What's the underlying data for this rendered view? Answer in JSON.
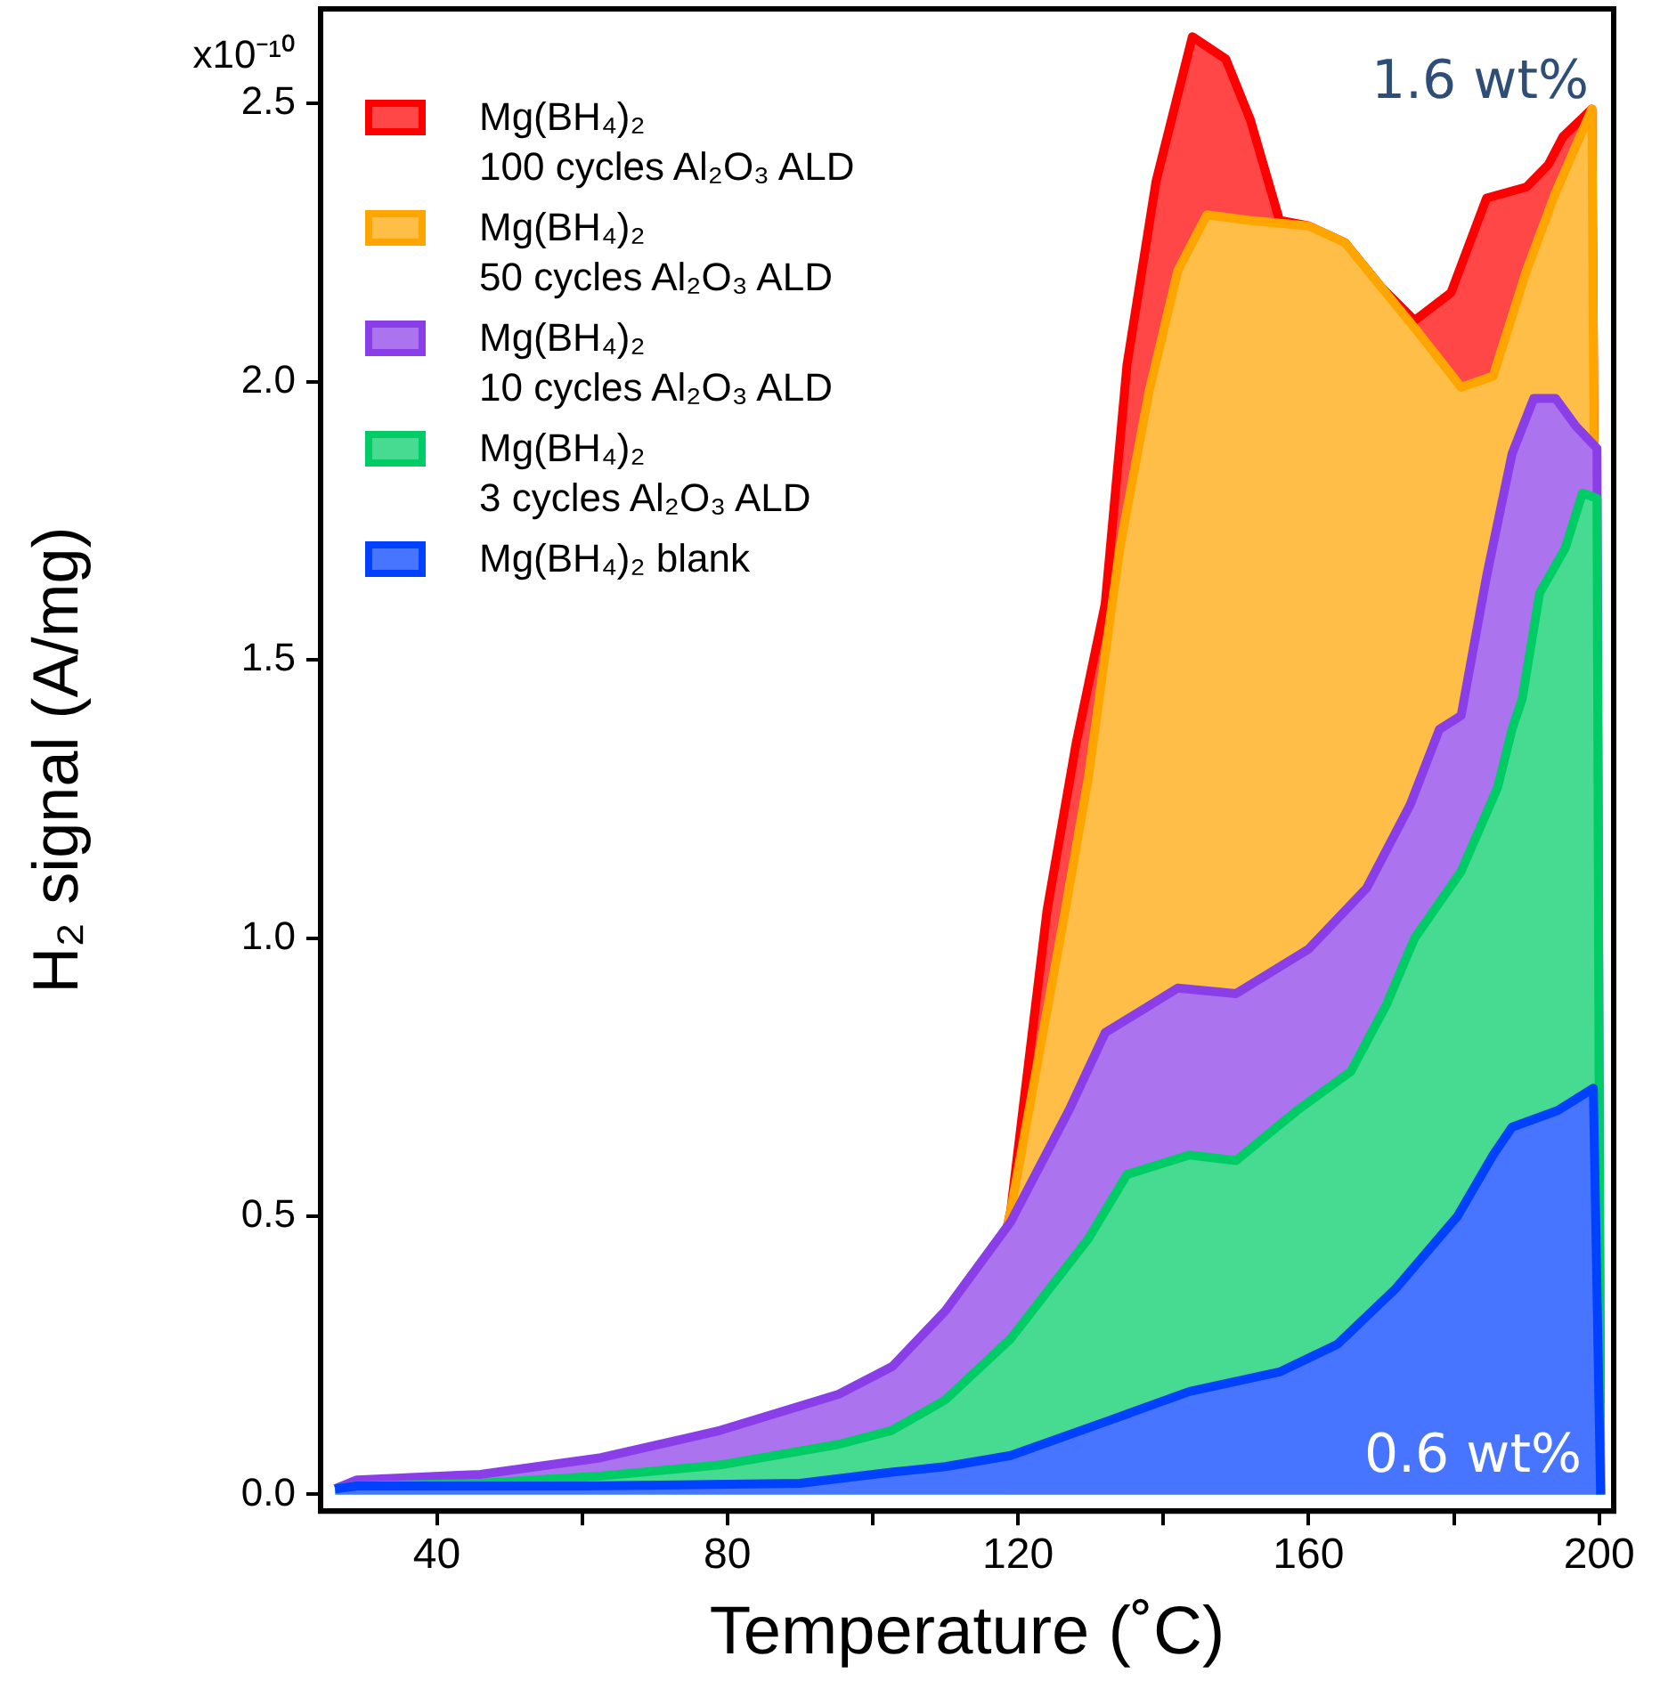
{
  "chart_data": {
    "type": "area",
    "xlabel": "Temperature (˚C)",
    "ylabel": "H₂ signal (A/mg)",
    "xlim": [
      24,
      202
    ],
    "ylim": [
      -0.03,
      2.67
    ],
    "xticks": [
      40,
      {
        "value": 60,
        "label": null
      },
      80,
      {
        "value": 100,
        "label": null
      },
      120,
      {
        "value": 140,
        "label": null
      },
      160,
      {
        "value": 180,
        "label": null
      },
      200
    ],
    "yticks": [
      {
        "value": 0,
        "label": "0.0"
      },
      {
        "value": 0.5,
        "label": "0.5"
      },
      {
        "value": 1,
        "label": "1.0"
      },
      {
        "value": 1.5,
        "label": "1.5"
      },
      {
        "value": 2,
        "label": "2.0"
      },
      {
        "value": 2.5,
        "label": "2.5"
      }
    ],
    "legend": "top left",
    "annotations": [
      "x10⁻¹⁰",
      "1.6 wt%",
      "0.6 wt%"
    ],
    "series": [
      {
        "name": "Mg(BH₄)₂\n100 cycles Al₂O₃ ALD",
        "color": "#ff0000",
        "x": [
          118,
          119,
          124,
          128,
          132,
          135,
          139,
          144,
          148.6,
          152,
          156,
          160,
          165,
          170,
          174.6,
          179.6,
          184.5,
          190,
          193,
          195,
          199,
          200.2
        ],
        "values": [
          0.45,
          0.51,
          1.05,
          1.35,
          1.6,
          2.03,
          2.36,
          2.62,
          2.58,
          2.47,
          2.29,
          2.28,
          2.25,
          2.17,
          2.11,
          2.16,
          2.33,
          2.35,
          2.39,
          2.44,
          2.49,
          0
        ]
      },
      {
        "name": "Mg(BH₄)₂\n50 cycles Al₂O₃ ALD",
        "color": "#ffa500",
        "x": [
          118,
          119,
          126.5,
          129.7,
          134,
          138,
          142,
          146,
          151.8,
          160,
          165,
          170,
          175,
          181,
          185.4,
          190,
          194,
          199,
          200.2
        ],
        "values": [
          0.45,
          0.51,
          1.05,
          1.29,
          1.7,
          1.98,
          2.2,
          2.3,
          2.29,
          2.28,
          2.25,
          2.17,
          2.09,
          1.99,
          2.01,
          2.2,
          2.34,
          2.49,
          0
        ]
      },
      {
        "name": "Mg(BH₄)₂\n10 cycles Al₂O₃ ALD",
        "color": "#8a3ee8",
        "x": [
          26,
          29,
          46,
          62.6,
          79,
          95.3,
          102.7,
          110,
          119,
          127,
          132,
          142,
          150,
          160,
          168,
          174,
          178,
          181,
          184.5,
          188,
          191,
          194,
          196.8,
          199.7,
          200.2
        ],
        "values": [
          0.01,
          0.026,
          0.036,
          0.066,
          0.115,
          0.18,
          0.23,
          0.33,
          0.49,
          0.69,
          0.83,
          0.91,
          0.9,
          0.98,
          1.09,
          1.24,
          1.375,
          1.4,
          1.65,
          1.87,
          1.97,
          1.97,
          1.92,
          1.88,
          0
        ]
      },
      {
        "name": "Mg(BH₄)₂\n3 cycles Al₂O₃ ALD",
        "color": "#00cc66",
        "x": [
          26,
          29,
          46,
          62.6,
          79,
          95.3,
          102.6,
          110,
          119,
          129.7,
          135,
          143.6,
          150,
          158.4,
          165.8,
          170.7,
          174.6,
          181,
          186,
          188,
          189.4,
          191.8,
          195.3,
          197.7,
          199.7,
          200.2
        ],
        "values": [
          0.01,
          0.015,
          0.02,
          0.033,
          0.053,
          0.09,
          0.115,
          0.17,
          0.28,
          0.46,
          0.575,
          0.61,
          0.6,
          0.69,
          0.76,
          0.88,
          1.0,
          1.12,
          1.27,
          1.375,
          1.43,
          1.62,
          1.7,
          1.8,
          1.79,
          0
        ]
      },
      {
        "name": "Mg(BH₄)₂ blank",
        "color": "#0040ff",
        "x": [
          26,
          29,
          60,
          90,
          102.6,
          110,
          119,
          133,
          143.6,
          156,
          164,
          172,
          180.5,
          185.4,
          188,
          194.3,
          199.2,
          200.2
        ],
        "values": [
          0.01,
          0.015,
          0.015,
          0.02,
          0.04,
          0.05,
          0.07,
          0.135,
          0.185,
          0.22,
          0.27,
          0.37,
          0.5,
          0.61,
          0.66,
          0.69,
          0.73,
          0
        ]
      }
    ]
  }
}
